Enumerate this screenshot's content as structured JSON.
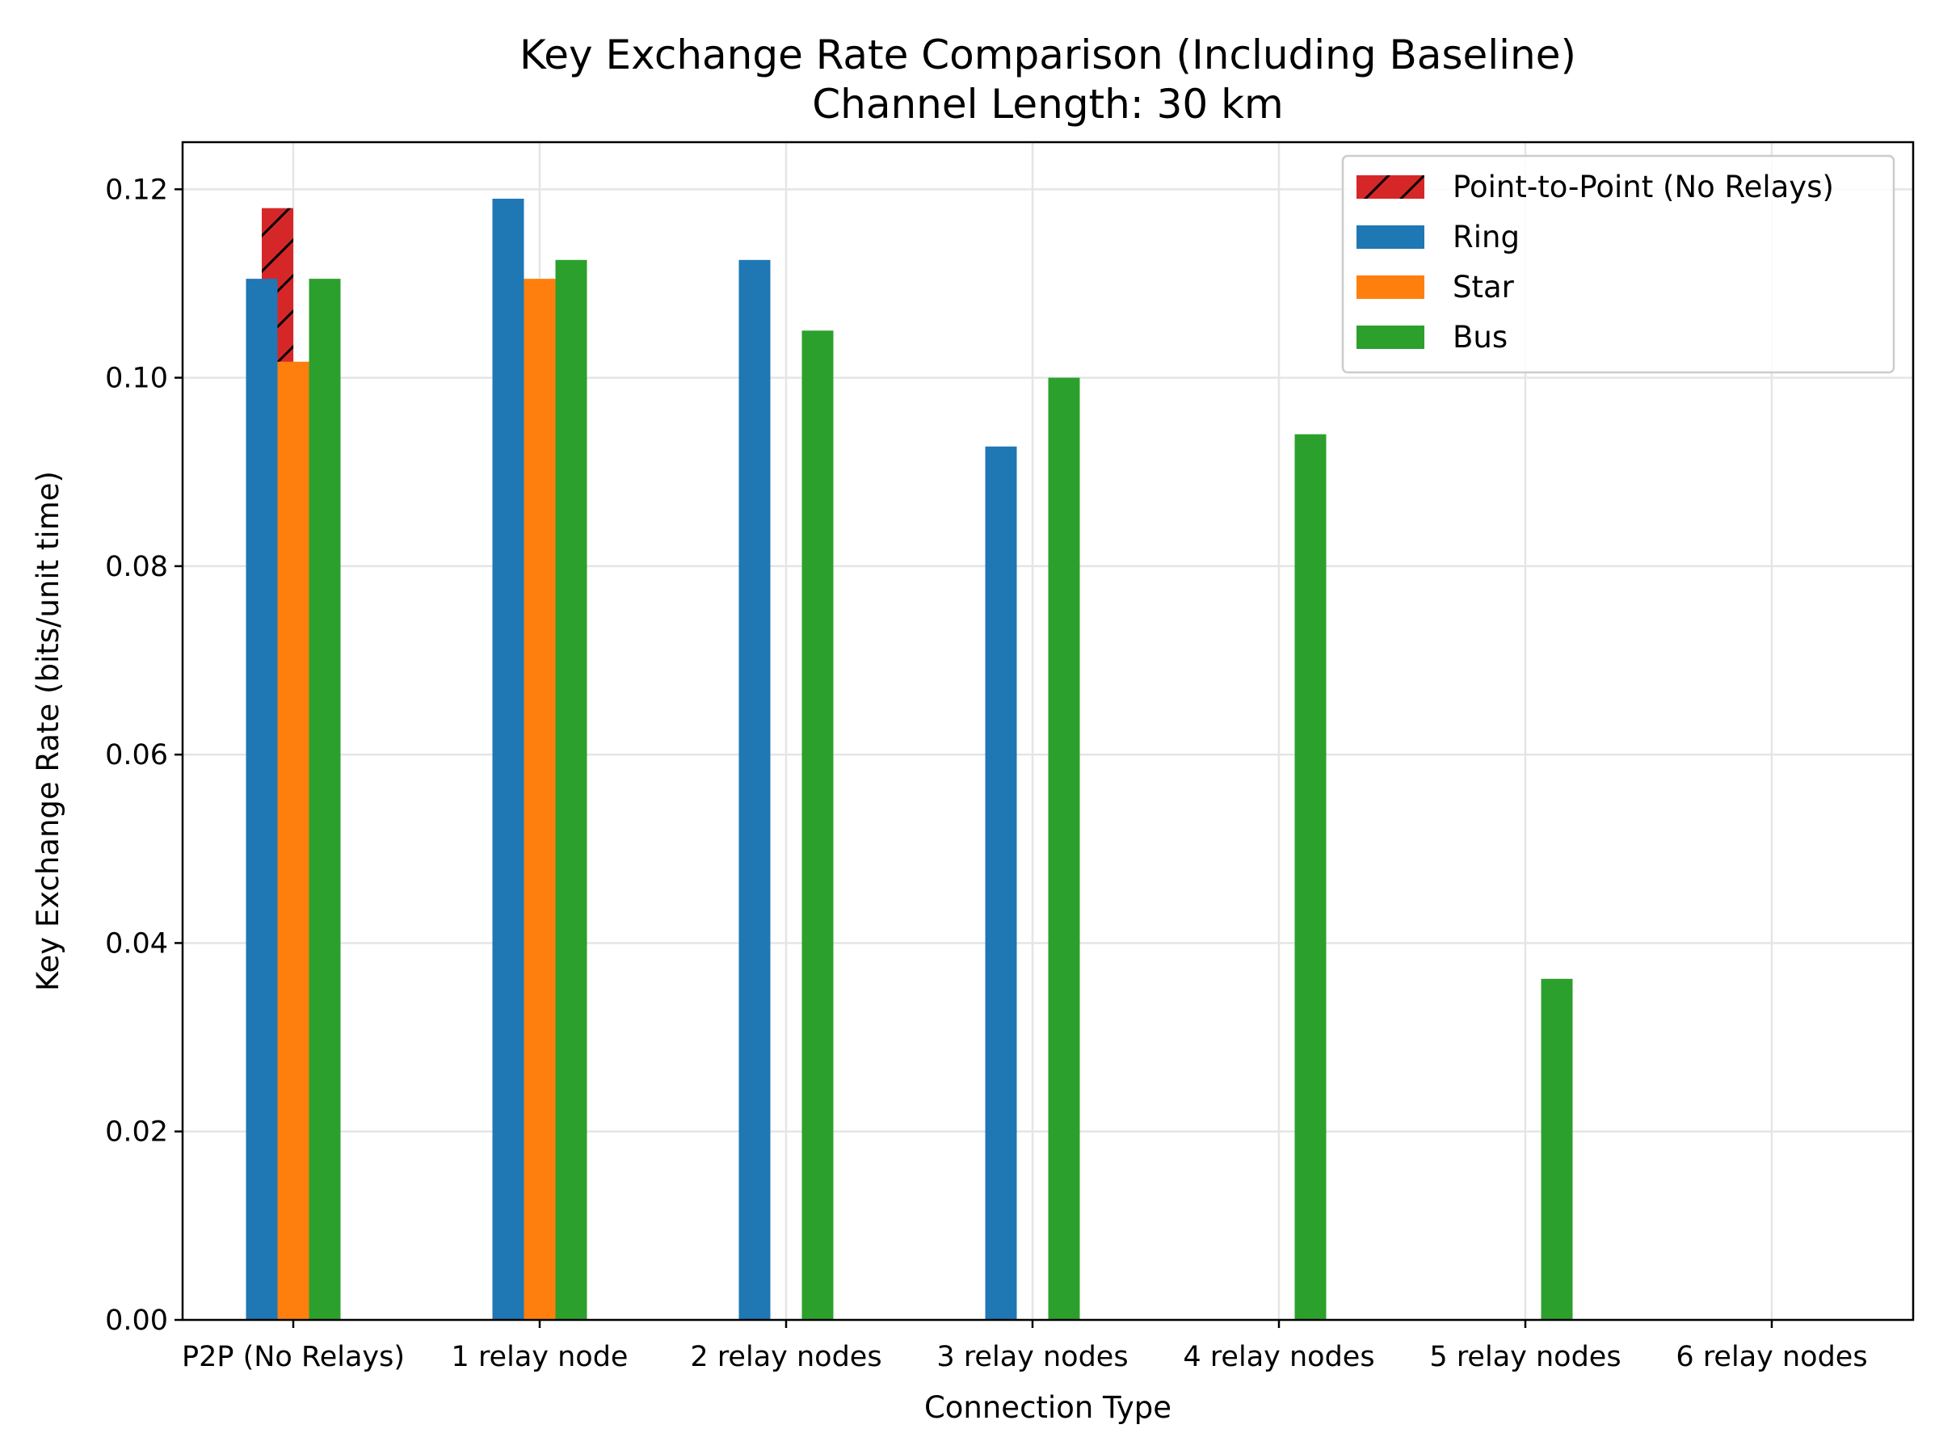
{
  "chart_data": {
    "type": "bar",
    "title": "Key Exchange Rate Comparison (Including Baseline)",
    "subtitle": "Channel Length: 30 km",
    "xlabel": "Connection Type",
    "ylabel": "Key Exchange Rate (bits/unit time)",
    "ylim": [
      0,
      0.125
    ],
    "yticks": [
      0.0,
      0.02,
      0.04,
      0.06,
      0.08,
      0.1,
      0.12
    ],
    "ytick_labels": [
      "0.00",
      "0.02",
      "0.04",
      "0.06",
      "0.08",
      "0.10",
      "0.12"
    ],
    "categories": [
      "P2P (No Relays)",
      "1 relay node",
      "2 relay nodes",
      "3 relay nodes",
      "4 relay nodes",
      "5 relay nodes",
      "6 relay nodes"
    ],
    "grid": true,
    "legend_position": "top-right",
    "series": [
      {
        "name": "Point-to-Point (No Relays)",
        "color": "#d62728",
        "hatch": "diagonal",
        "values": [
          0.118,
          null,
          null,
          null,
          null,
          null,
          null
        ]
      },
      {
        "name": "Ring",
        "color": "#1f77b4",
        "values": [
          0.1105,
          0.119,
          0.1125,
          0.0927,
          null,
          null,
          null
        ]
      },
      {
        "name": "Star",
        "color": "#ff7f0e",
        "values": [
          0.1017,
          0.1105,
          null,
          null,
          null,
          null,
          null
        ]
      },
      {
        "name": "Bus",
        "color": "#2ca02c",
        "values": [
          0.1105,
          0.1125,
          0.105,
          0.1,
          0.094,
          0.0362,
          null
        ]
      }
    ]
  }
}
